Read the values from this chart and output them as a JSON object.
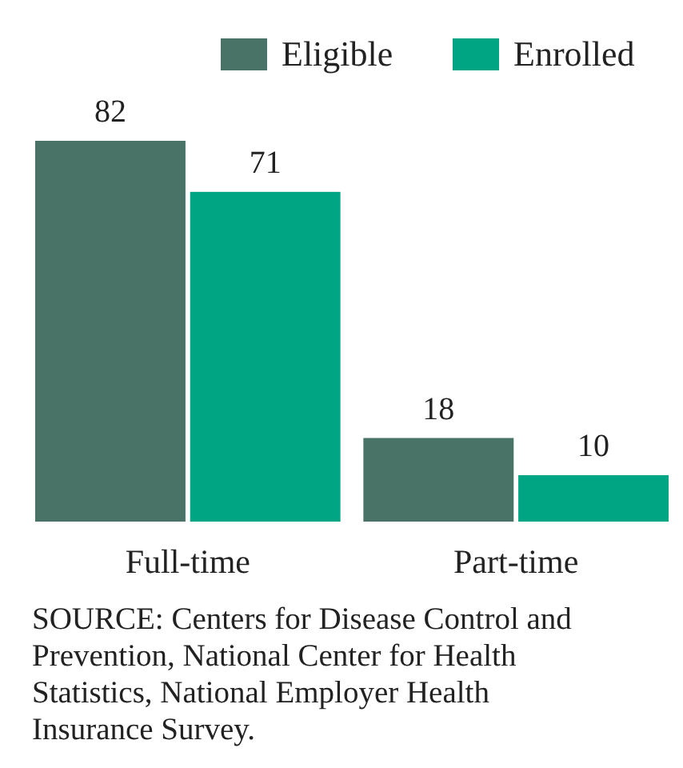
{
  "chart_data": {
    "type": "bar",
    "categories": [
      "Full-time",
      "Part-time"
    ],
    "series": [
      {
        "name": "Eligible",
        "color": "#4a7367",
        "values": [
          82,
          18
        ]
      },
      {
        "name": "Enrolled",
        "color": "#00a583",
        "values": [
          71,
          10
        ]
      }
    ],
    "relative": false,
    "data_labels": true,
    "legend": "top right",
    "annotations": [
      "SOURCE: Centers for Disease Control and Prevention, National Center for Health Statistics, National Employer Health Insurance Survey."
    ]
  }
}
